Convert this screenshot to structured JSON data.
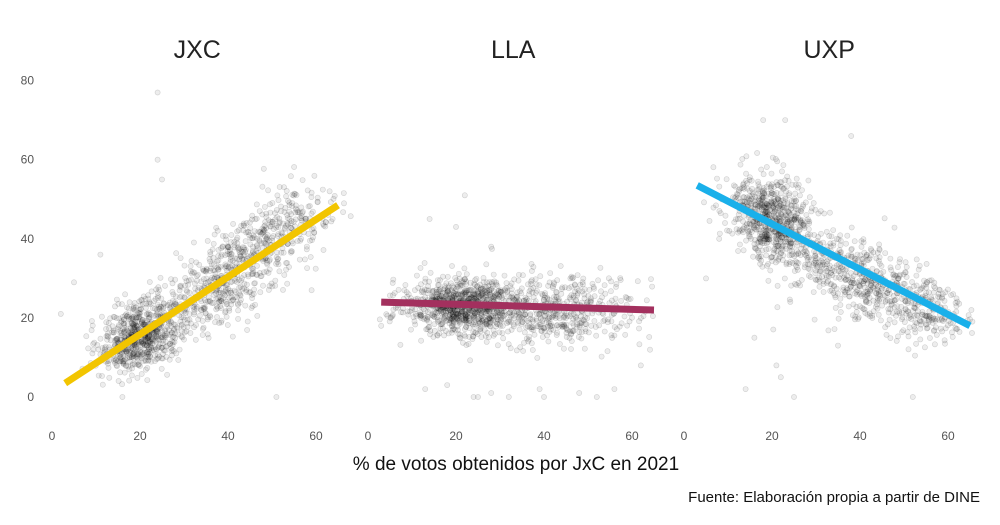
{
  "chart_data": {
    "type": "scatter",
    "xlabel": "% de votos obtenidos por JxC en 2021",
    "caption": "Fuente: Elaboración propia a partir de DINE",
    "xlim": [
      0,
      70
    ],
    "ylim": [
      0,
      80
    ],
    "xticks": [
      "0",
      "20",
      "40",
      "60"
    ],
    "yticks": [
      "0",
      "20",
      "40",
      "60",
      "80"
    ],
    "point_color": "#000000",
    "panels": [
      {
        "title": "JXC",
        "trend_color": "#F2C500",
        "trend": {
          "x": [
            3,
            65
          ],
          "y": [
            3.5,
            48.5
          ]
        },
        "clusters": [
          {
            "n": 650,
            "cx": 20,
            "cy": 15,
            "sx": 4.5,
            "sy": 4.5,
            "rho": 0.3
          },
          {
            "n": 550,
            "cx": 40,
            "cy": 30,
            "sx": 8,
            "sy": 7,
            "rho": 0.65
          },
          {
            "n": 180,
            "cx": 54,
            "cy": 44,
            "sx": 5,
            "sy": 5,
            "rho": 0.3
          }
        ],
        "outliers": [
          [
            24,
            77
          ],
          [
            24,
            60
          ],
          [
            25,
            55
          ],
          [
            51,
            0
          ],
          [
            16,
            0
          ],
          [
            59,
            27
          ],
          [
            2,
            21
          ],
          [
            5,
            29
          ],
          [
            11,
            36
          ]
        ]
      },
      {
        "title": "LLA",
        "trend_color": "#A3305E",
        "trend": {
          "x": [
            3,
            65
          ],
          "y": [
            24,
            22
          ]
        },
        "clusters": [
          {
            "n": 800,
            "cx": 21,
            "cy": 23,
            "sx": 6,
            "sy": 3.5,
            "rho": 0
          },
          {
            "n": 550,
            "cx": 42,
            "cy": 22,
            "sx": 10,
            "sy": 4.5,
            "rho": 0
          }
        ],
        "outliers": [
          [
            22,
            51
          ],
          [
            20,
            43
          ],
          [
            14,
            45
          ],
          [
            25,
            0
          ],
          [
            24,
            0
          ],
          [
            28,
            1
          ],
          [
            32,
            0
          ],
          [
            40,
            0
          ],
          [
            39,
            2
          ],
          [
            48,
            1
          ],
          [
            52,
            0
          ],
          [
            56,
            2
          ],
          [
            18,
            3
          ],
          [
            13,
            2
          ],
          [
            62,
            8
          ],
          [
            3,
            18
          ],
          [
            28,
            38
          ],
          [
            46,
            30
          ]
        ]
      },
      {
        "title": "UXP",
        "trend_color": "#1AB0EA",
        "trend": {
          "x": [
            3,
            65
          ],
          "y": [
            53.5,
            18
          ]
        },
        "clusters": [
          {
            "n": 650,
            "cx": 20,
            "cy": 45,
            "sx": 4.5,
            "sy": 5.5,
            "rho": -0.3
          },
          {
            "n": 550,
            "cx": 40,
            "cy": 30,
            "sx": 9,
            "sy": 6,
            "rho": -0.55
          },
          {
            "n": 150,
            "cx": 55,
            "cy": 22,
            "sx": 5,
            "sy": 4,
            "rho": -0.2
          }
        ],
        "outliers": [
          [
            18,
            70
          ],
          [
            23,
            70
          ],
          [
            38,
            66
          ],
          [
            14,
            2
          ],
          [
            22,
            5
          ],
          [
            25,
            0
          ],
          [
            52,
            0
          ],
          [
            16,
            15
          ],
          [
            21,
            8
          ],
          [
            35,
            13
          ],
          [
            5,
            30
          ],
          [
            8,
            40
          ]
        ]
      }
    ]
  }
}
